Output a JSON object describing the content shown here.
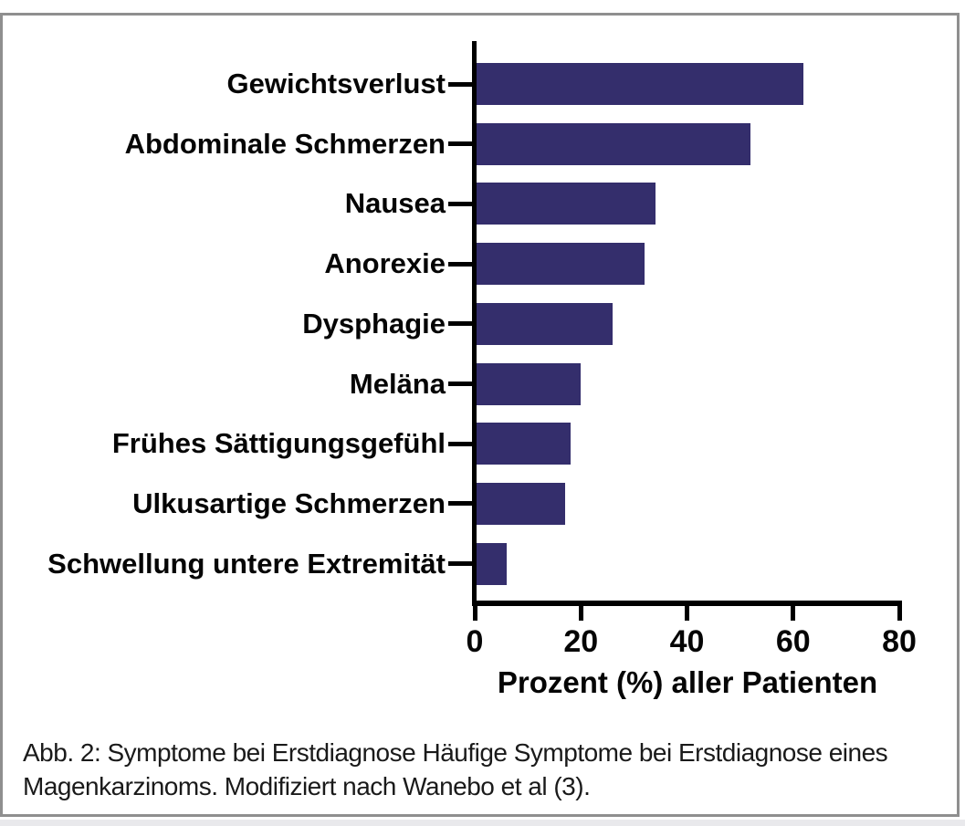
{
  "figure": {
    "caption": "Abb. 2: Symptome bei Erstdiagnose Häufige Symptome bei Erstdiagnose eines Magenkarzinoms. Modifiziert nach Wanebo et al (3)."
  },
  "chart_data": {
    "type": "bar",
    "orientation": "horizontal",
    "categories": [
      "Gewichtsverlust",
      "Abdominale Schmerzen",
      "Nausea",
      "Anorexie",
      "Dysphagie",
      "Meläna",
      "Frühes Sättigungsgefühl",
      "Ulkusartige Schmerzen",
      "Schwellung untere Extremität"
    ],
    "values": [
      62,
      52,
      34,
      32,
      26,
      20,
      18,
      17,
      6
    ],
    "xlabel": "Prozent (%) aller Patienten",
    "xticks": [
      0,
      20,
      40,
      60,
      80
    ],
    "xlim": [
      0,
      80
    ],
    "grid": false,
    "legend": "none",
    "bar_color": "#342E6C",
    "axis_color": "#000000"
  }
}
